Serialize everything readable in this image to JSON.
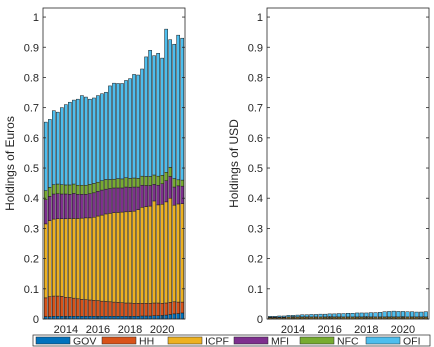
{
  "chart_data": [
    {
      "type": "bar",
      "stacked": true,
      "ylabel": "Holdings of Euros",
      "ylim": [
        0,
        1.03
      ],
      "yticks": [
        "0",
        "0.1",
        "0.2",
        "0.3",
        "0.4",
        "0.5",
        "0.6",
        "0.7",
        "0.8",
        "0.9",
        "1"
      ],
      "xticks": [
        "2014",
        "2016",
        "2018",
        "2020"
      ],
      "grid": false,
      "categories": [
        "2012Q4",
        "2013Q1",
        "2013Q2",
        "2013Q3",
        "2013Q4",
        "2014Q1",
        "2014Q2",
        "2014Q3",
        "2014Q4",
        "2015Q1",
        "2015Q2",
        "2015Q3",
        "2015Q4",
        "2016Q1",
        "2016Q2",
        "2016Q3",
        "2016Q4",
        "2017Q1",
        "2017Q2",
        "2017Q3",
        "2017Q4",
        "2018Q1",
        "2018Q2",
        "2018Q3",
        "2018Q4",
        "2019Q1",
        "2019Q2",
        "2019Q3",
        "2019Q4",
        "2020Q1",
        "2020Q2",
        "2020Q3",
        "2020Q4",
        "2021Q1",
        "2021Q2"
      ],
      "series": [
        {
          "name": "GOV",
          "values": [
            0.008,
            0.008,
            0.009,
            0.009,
            0.009,
            0.009,
            0.009,
            0.009,
            0.009,
            0.009,
            0.009,
            0.009,
            0.009,
            0.009,
            0.009,
            0.009,
            0.009,
            0.009,
            0.009,
            0.009,
            0.009,
            0.009,
            0.009,
            0.009,
            0.01,
            0.01,
            0.01,
            0.011,
            0.011,
            0.012,
            0.013,
            0.015,
            0.017,
            0.018,
            0.02
          ]
        },
        {
          "name": "HH",
          "values": [
            0.062,
            0.066,
            0.067,
            0.067,
            0.066,
            0.063,
            0.062,
            0.06,
            0.058,
            0.056,
            0.055,
            0.054,
            0.053,
            0.052,
            0.05,
            0.049,
            0.048,
            0.047,
            0.046,
            0.045,
            0.044,
            0.044,
            0.043,
            0.043,
            0.042,
            0.042,
            0.042,
            0.042,
            0.042,
            0.04,
            0.04,
            0.04,
            0.04,
            0.038,
            0.036
          ]
        },
        {
          "name": "ICPF",
          "values": [
            0.245,
            0.252,
            0.255,
            0.256,
            0.257,
            0.26,
            0.262,
            0.264,
            0.266,
            0.269,
            0.271,
            0.272,
            0.275,
            0.28,
            0.285,
            0.29,
            0.293,
            0.296,
            0.298,
            0.3,
            0.302,
            0.303,
            0.305,
            0.31,
            0.318,
            0.32,
            0.322,
            0.338,
            0.325,
            0.328,
            0.335,
            0.345,
            0.32,
            0.325,
            0.326
          ]
        },
        {
          "name": "MFI",
          "values": [
            0.08,
            0.08,
            0.083,
            0.083,
            0.082,
            0.082,
            0.08,
            0.083,
            0.08,
            0.079,
            0.078,
            0.08,
            0.081,
            0.082,
            0.083,
            0.082,
            0.082,
            0.082,
            0.081,
            0.08,
            0.082,
            0.08,
            0.08,
            0.075,
            0.073,
            0.07,
            0.068,
            0.055,
            0.065,
            0.068,
            0.07,
            0.072,
            0.06,
            0.06,
            0.058
          ]
        },
        {
          "name": "NFC",
          "values": [
            0.03,
            0.03,
            0.031,
            0.032,
            0.031,
            0.03,
            0.031,
            0.031,
            0.03,
            0.03,
            0.03,
            0.031,
            0.031,
            0.03,
            0.031,
            0.032,
            0.03,
            0.029,
            0.031,
            0.03,
            0.031,
            0.03,
            0.03,
            0.029,
            0.03,
            0.03,
            0.03,
            0.031,
            0.03,
            0.028,
            0.028,
            0.03,
            0.028,
            0.02,
            0.02
          ]
        },
        {
          "name": "OFI",
          "values": [
            0.227,
            0.225,
            0.245,
            0.238,
            0.255,
            0.266,
            0.274,
            0.278,
            0.285,
            0.297,
            0.292,
            0.282,
            0.283,
            0.287,
            0.288,
            0.289,
            0.31,
            0.318,
            0.315,
            0.316,
            0.322,
            0.33,
            0.343,
            0.342,
            0.355,
            0.396,
            0.418,
            0.395,
            0.407,
            0.388,
            0.474,
            0.423,
            0.445,
            0.479,
            0.47
          ]
        }
      ]
    },
    {
      "type": "bar",
      "stacked": true,
      "ylabel": "Holdings of USD",
      "ylim": [
        0,
        1.03
      ],
      "yticks": [
        "0",
        "0.1",
        "0.2",
        "0.3",
        "0.4",
        "0.5",
        "0.6",
        "0.7",
        "0.8",
        "0.9",
        "1"
      ],
      "xticks": [
        "2014",
        "2016",
        "2018",
        "2020"
      ],
      "grid": false,
      "categories": [
        "2012Q4",
        "2013Q1",
        "2013Q2",
        "2013Q3",
        "2013Q4",
        "2014Q1",
        "2014Q2",
        "2014Q3",
        "2014Q4",
        "2015Q1",
        "2015Q2",
        "2015Q3",
        "2015Q4",
        "2016Q1",
        "2016Q2",
        "2016Q3",
        "2016Q4",
        "2017Q1",
        "2017Q2",
        "2017Q3",
        "2017Q4",
        "2018Q1",
        "2018Q2",
        "2018Q3",
        "2018Q4",
        "2019Q1",
        "2019Q2",
        "2019Q3",
        "2019Q4",
        "2020Q1",
        "2020Q2",
        "2020Q3",
        "2020Q4",
        "2021Q1",
        "2021Q2"
      ],
      "series": [
        {
          "name": "GOV",
          "values": [
            0.0005,
            0.0005,
            0.0005,
            0.0005,
            0.0005,
            0.0005,
            0.0005,
            0.0005,
            0.0005,
            0.0005,
            0.0005,
            0.0005,
            0.0005,
            0.0005,
            0.0005,
            0.0005,
            0.0005,
            0.0005,
            0.0005,
            0.0005,
            0.0005,
            0.0005,
            0.0005,
            0.0005,
            0.0005,
            0.0005,
            0.0005,
            0.0005,
            0.0005,
            0.0005,
            0.0005,
            0.0005,
            0.0005,
            0.0005,
            0.0005
          ]
        },
        {
          "name": "HH",
          "values": [
            0.001,
            0.001,
            0.001,
            0.001,
            0.001,
            0.001,
            0.001,
            0.001,
            0.001,
            0.001,
            0.001,
            0.001,
            0.001,
            0.001,
            0.001,
            0.001,
            0.001,
            0.001,
            0.001,
            0.001,
            0.001,
            0.001,
            0.001,
            0.001,
            0.001,
            0.001,
            0.001,
            0.001,
            0.001,
            0.001,
            0.001,
            0.001,
            0.001,
            0.001,
            0.001
          ]
        },
        {
          "name": "ICPF",
          "values": [
            0.003,
            0.003,
            0.003,
            0.003,
            0.004,
            0.004,
            0.004,
            0.004,
            0.004,
            0.004,
            0.004,
            0.004,
            0.004,
            0.004,
            0.004,
            0.004,
            0.004,
            0.004,
            0.004,
            0.004,
            0.004,
            0.004,
            0.004,
            0.004,
            0.004,
            0.004,
            0.004,
            0.004,
            0.004,
            0.004,
            0.004,
            0.004,
            0.004,
            0.004,
            0.004
          ]
        },
        {
          "name": "MFI",
          "values": [
            0.001,
            0.001,
            0.001,
            0.001,
            0.001,
            0.001,
            0.001,
            0.001,
            0.001,
            0.001,
            0.001,
            0.001,
            0.001,
            0.001,
            0.001,
            0.001,
            0.001,
            0.001,
            0.001,
            0.001,
            0.001,
            0.001,
            0.001,
            0.001,
            0.001,
            0.001,
            0.001,
            0.001,
            0.001,
            0.001,
            0.001,
            0.001,
            0.001,
            0.001,
            0.001
          ]
        },
        {
          "name": "NFC",
          "values": [
            0.0005,
            0.0005,
            0.0005,
            0.0005,
            0.0005,
            0.0005,
            0.0005,
            0.0005,
            0.0005,
            0.0005,
            0.0005,
            0.0005,
            0.0005,
            0.0005,
            0.0005,
            0.0005,
            0.0005,
            0.0005,
            0.0005,
            0.0005,
            0.0005,
            0.0005,
            0.0005,
            0.0005,
            0.0005,
            0.0005,
            0.0005,
            0.0005,
            0.0005,
            0.0005,
            0.0005,
            0.0005,
            0.0005,
            0.0005,
            0.0005
          ]
        },
        {
          "name": "OFI",
          "values": [
            0.003,
            0.003,
            0.004,
            0.004,
            0.005,
            0.005,
            0.006,
            0.007,
            0.007,
            0.008,
            0.008,
            0.009,
            0.009,
            0.01,
            0.01,
            0.011,
            0.011,
            0.012,
            0.012,
            0.013,
            0.013,
            0.013,
            0.014,
            0.014,
            0.015,
            0.017,
            0.018,
            0.019,
            0.018,
            0.018,
            0.017,
            0.017,
            0.016,
            0.016,
            0.017
          ]
        }
      ]
    }
  ],
  "legend": {
    "placement": "bottom",
    "items": [
      {
        "label": "GOV",
        "color": "#0072bd"
      },
      {
        "label": "HH",
        "color": "#d95319"
      },
      {
        "label": "ICPF",
        "color": "#edb120"
      },
      {
        "label": "MFI",
        "color": "#7e2f8e"
      },
      {
        "label": "NFC",
        "color": "#77ac30"
      },
      {
        "label": "OFI",
        "color": "#4dbeee"
      }
    ]
  }
}
